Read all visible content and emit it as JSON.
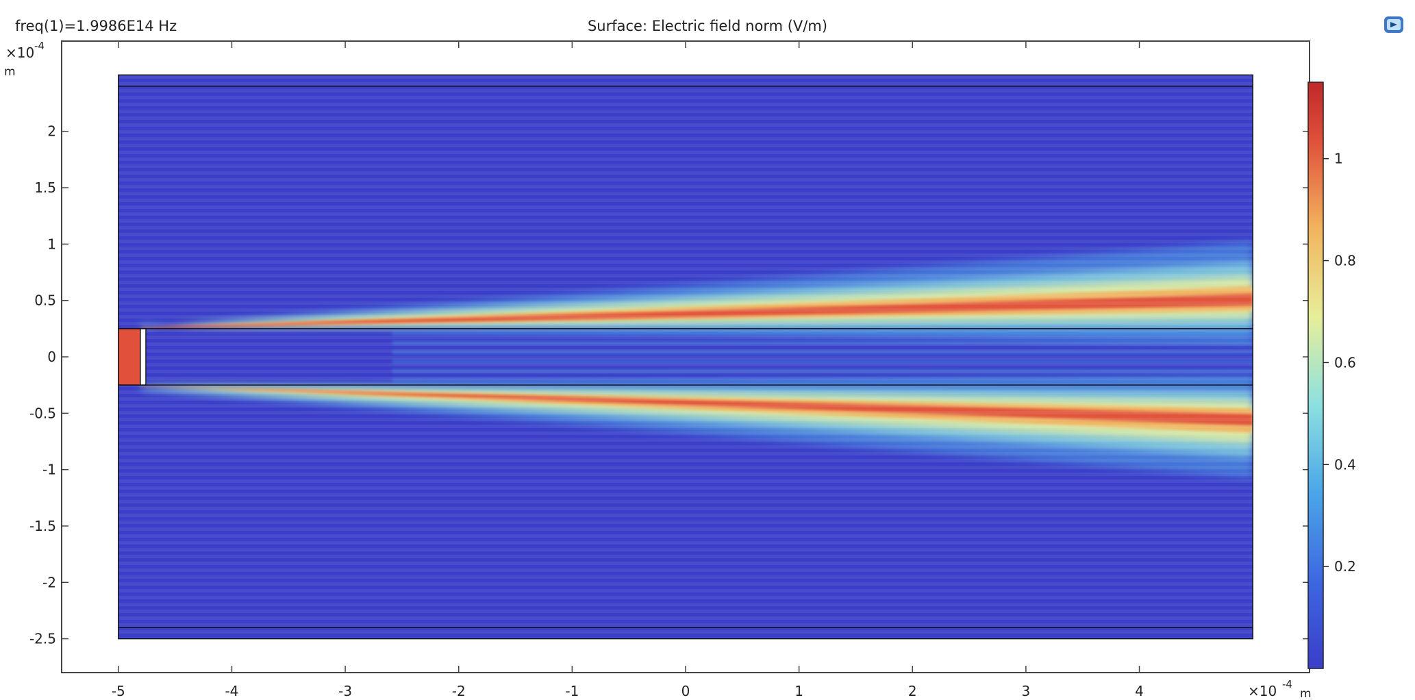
{
  "header": {
    "freq_label": "freq(1)=1.9986E14 Hz",
    "surface_title": "Surface: Electric field norm (V/m)"
  },
  "toolbar": {
    "zoom_icon": "zoom-extents-icon"
  },
  "chart_data": {
    "type": "heatmap",
    "title": "Surface: Electric field norm (V/m)",
    "quantity": "Electric field norm",
    "unit": "V/m",
    "xlabel": "m",
    "ylabel": "m",
    "x_exponent_label": "×10",
    "x_exponent_power": "-4",
    "y_exponent_label": "×10",
    "y_exponent_power": "-4",
    "xlim": [
      -5.5,
      5.5
    ],
    "ylim": [
      -2.8,
      2.8
    ],
    "domain_x": [
      -5.0,
      5.0
    ],
    "domain_y": [
      -2.5,
      2.5
    ],
    "x_ticks": [
      -5,
      -4,
      -3,
      -2,
      -1,
      0,
      1,
      2,
      3,
      4
    ],
    "x_tick_labels": [
      "-5",
      "-4",
      "-3",
      "-2",
      "-1",
      "0",
      "1",
      "2",
      "3",
      "4"
    ],
    "y_ticks": [
      -2.5,
      -2,
      -1.5,
      -1,
      -0.5,
      0,
      0.5,
      1,
      1.5,
      2
    ],
    "y_tick_labels": [
      "-2.5",
      "-2",
      "-1.5",
      "-1",
      "-0.5",
      "0",
      "0.5",
      "1",
      "1.5",
      "2"
    ],
    "colorbar": {
      "range": [
        0,
        1.15
      ],
      "ticks": [
        0.2,
        0.4,
        0.6,
        0.8,
        1
      ],
      "tick_labels": [
        "0.2",
        "0.4",
        "0.6",
        "0.8",
        "1"
      ],
      "colormap": [
        "#3a3ec8",
        "#3c64e0",
        "#4aa6e8",
        "#8de0e0",
        "#e7ee9a",
        "#f2b45e",
        "#e0503a",
        "#c0282a"
      ]
    },
    "domain_boundaries_y": [
      -2.4,
      -0.25,
      0.25,
      2.4
    ],
    "waveguide": {
      "x_range": [
        -5.0,
        -4.8
      ],
      "y_range": [
        -0.25,
        0.25
      ],
      "field": 0.9
    },
    "beam_lobes": [
      {
        "name": "upper",
        "y_start": 0.25,
        "y_end": 0.5,
        "peak_field": 1.05
      },
      {
        "name": "lower",
        "y_start": -0.25,
        "y_end": -0.55,
        "peak_field": 1.05
      }
    ]
  }
}
